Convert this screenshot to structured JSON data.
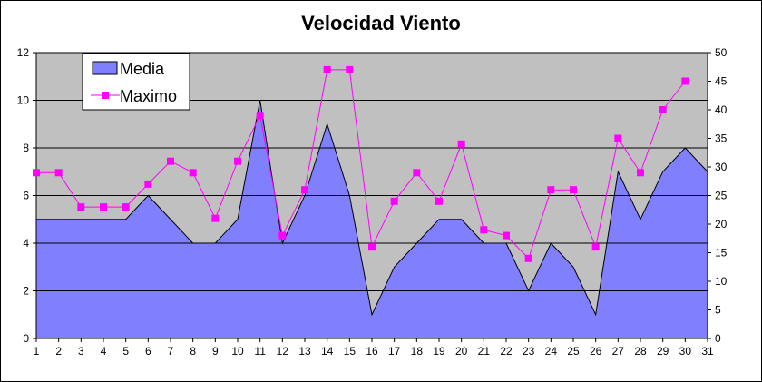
{
  "chart_data": {
    "type": "area",
    "title": "Velocidad Viento",
    "xlabel": "",
    "ylabel": "",
    "x": [
      1,
      2,
      3,
      4,
      5,
      6,
      7,
      8,
      9,
      10,
      11,
      12,
      13,
      14,
      15,
      16,
      17,
      18,
      19,
      20,
      21,
      22,
      23,
      24,
      25,
      26,
      27,
      28,
      29,
      30,
      31
    ],
    "series": [
      {
        "name": "Media",
        "type": "area",
        "axis": "left",
        "values": [
          5,
          5,
          5,
          5,
          5,
          6,
          5,
          4,
          4,
          5,
          10,
          4,
          6,
          9,
          6,
          1,
          3,
          4,
          5,
          5,
          4,
          4,
          2,
          4,
          3,
          1,
          7,
          5,
          7,
          8,
          7
        ]
      },
      {
        "name": "Maximo",
        "type": "line",
        "axis": "right",
        "values": [
          29,
          29,
          23,
          23,
          23,
          27,
          31,
          29,
          21,
          31,
          39,
          18,
          26,
          47,
          47,
          16,
          24,
          29,
          24,
          34,
          19,
          18,
          14,
          26,
          26,
          16,
          35,
          29,
          40,
          45,
          null
        ]
      }
    ],
    "ylim_left": [
      0,
      12
    ],
    "yticks_left": [
      0,
      2,
      4,
      6,
      8,
      10,
      12
    ],
    "ylim_right": [
      0,
      50
    ],
    "yticks_right": [
      0,
      5,
      10,
      15,
      20,
      25,
      30,
      35,
      40,
      45,
      50
    ],
    "grid": true,
    "legend_position": "top-left",
    "colors": {
      "plot_background": "#C0C0C0",
      "area_fill": "#8080FF",
      "line": "#FF00FF",
      "marker": "#FF00FF",
      "gridline": "#000000"
    }
  }
}
